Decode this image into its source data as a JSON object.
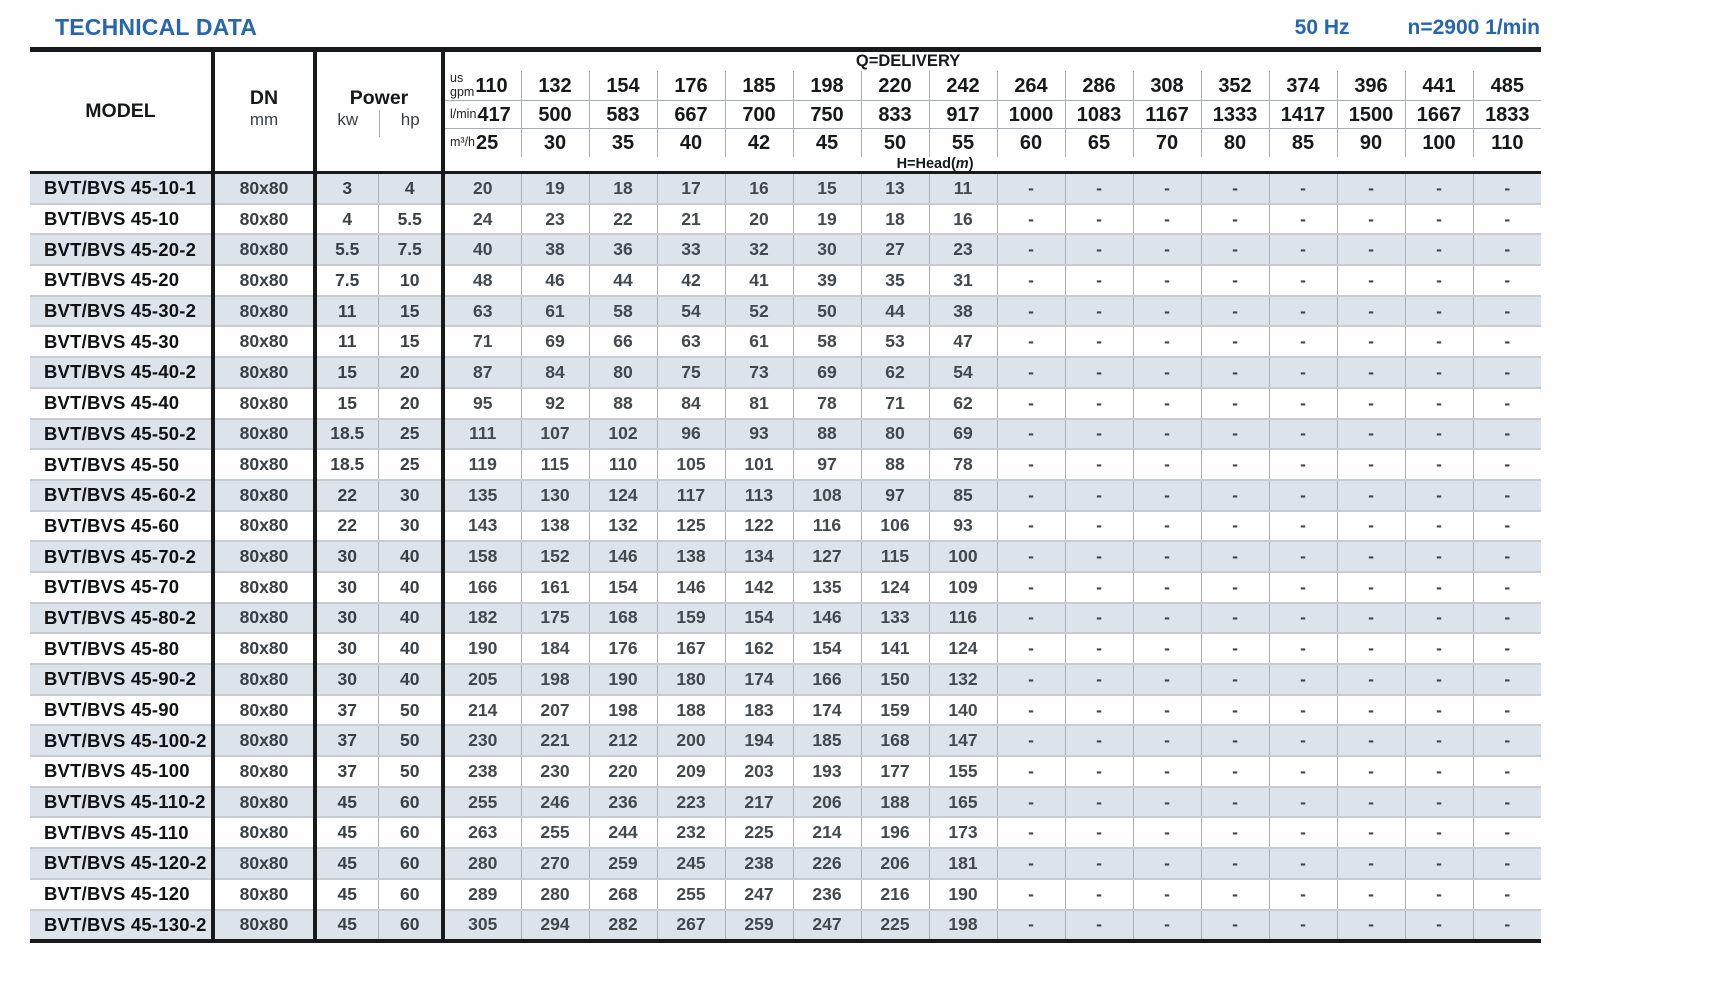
{
  "page": {
    "title": "TECHNICAL DATA",
    "frequency": "50 Hz",
    "speed": "n=2900 1/min",
    "accent_color": "#2766ae",
    "stripe_color": "#dce3ea"
  },
  "table": {
    "model_header": "MODEL",
    "dn_header": "DN",
    "dn_unit": "mm",
    "power_header": "Power",
    "power_units": [
      "kw",
      "hp"
    ],
    "delivery_header": "Q=DELIVERY",
    "head_label": {
      "prefix": "H=Head(",
      "italic": "m",
      "suffix": ")"
    },
    "unit_rows": [
      {
        "key": "us-gpm",
        "label_lines": [
          "us",
          "gpm"
        ],
        "values": [
          "110",
          "132",
          "154",
          "176",
          "185",
          "198",
          "220",
          "242",
          "264",
          "286",
          "308",
          "352",
          "374",
          "396",
          "441",
          "485"
        ]
      },
      {
        "key": "l-min",
        "label_lines": [
          "l/min"
        ],
        "values": [
          "417",
          "500",
          "583",
          "667",
          "700",
          "750",
          "833",
          "917",
          "1000",
          "1083",
          "1167",
          "1333",
          "1417",
          "1500",
          "1667",
          "1833"
        ]
      },
      {
        "key": "m3-h",
        "label_lines": [
          "m³/h"
        ],
        "values": [
          "25",
          "30",
          "35",
          "40",
          "42",
          "45",
          "50",
          "55",
          "60",
          "65",
          "70",
          "80",
          "85",
          "90",
          "100",
          "110"
        ]
      }
    ],
    "rows": [
      {
        "model": "BVT/BVS 45-10-1",
        "dn": "80x80",
        "kw": "3",
        "hp": "4",
        "heads": [
          "20",
          "19",
          "18",
          "17",
          "16",
          "15",
          "13",
          "11",
          "-",
          "-",
          "-",
          "-",
          "-",
          "-",
          "-",
          "-"
        ]
      },
      {
        "model": "BVT/BVS 45-10",
        "dn": "80x80",
        "kw": "4",
        "hp": "5.5",
        "heads": [
          "24",
          "23",
          "22",
          "21",
          "20",
          "19",
          "18",
          "16",
          "-",
          "-",
          "-",
          "-",
          "-",
          "-",
          "-",
          "-"
        ]
      },
      {
        "model": "BVT/BVS 45-20-2",
        "dn": "80x80",
        "kw": "5.5",
        "hp": "7.5",
        "heads": [
          "40",
          "38",
          "36",
          "33",
          "32",
          "30",
          "27",
          "23",
          "-",
          "-",
          "-",
          "-",
          "-",
          "-",
          "-",
          "-"
        ]
      },
      {
        "model": "BVT/BVS 45-20",
        "dn": "80x80",
        "kw": "7.5",
        "hp": "10",
        "heads": [
          "48",
          "46",
          "44",
          "42",
          "41",
          "39",
          "35",
          "31",
          "-",
          "-",
          "-",
          "-",
          "-",
          "-",
          "-",
          "-"
        ]
      },
      {
        "model": "BVT/BVS 45-30-2",
        "dn": "80x80",
        "kw": "11",
        "hp": "15",
        "heads": [
          "63",
          "61",
          "58",
          "54",
          "52",
          "50",
          "44",
          "38",
          "-",
          "-",
          "-",
          "-",
          "-",
          "-",
          "-",
          "-"
        ]
      },
      {
        "model": "BVT/BVS 45-30",
        "dn": "80x80",
        "kw": "11",
        "hp": "15",
        "heads": [
          "71",
          "69",
          "66",
          "63",
          "61",
          "58",
          "53",
          "47",
          "-",
          "-",
          "-",
          "-",
          "-",
          "-",
          "-",
          "-"
        ]
      },
      {
        "model": "BVT/BVS 45-40-2",
        "dn": "80x80",
        "kw": "15",
        "hp": "20",
        "heads": [
          "87",
          "84",
          "80",
          "75",
          "73",
          "69",
          "62",
          "54",
          "-",
          "-",
          "-",
          "-",
          "-",
          "-",
          "-",
          "-"
        ]
      },
      {
        "model": "BVT/BVS 45-40",
        "dn": "80x80",
        "kw": "15",
        "hp": "20",
        "heads": [
          "95",
          "92",
          "88",
          "84",
          "81",
          "78",
          "71",
          "62",
          "-",
          "-",
          "-",
          "-",
          "-",
          "-",
          "-",
          "-"
        ]
      },
      {
        "model": "BVT/BVS 45-50-2",
        "dn": "80x80",
        "kw": "18.5",
        "hp": "25",
        "heads": [
          "111",
          "107",
          "102",
          "96",
          "93",
          "88",
          "80",
          "69",
          "-",
          "-",
          "-",
          "-",
          "-",
          "-",
          "-",
          "-"
        ]
      },
      {
        "model": "BVT/BVS 45-50",
        "dn": "80x80",
        "kw": "18.5",
        "hp": "25",
        "heads": [
          "119",
          "115",
          "110",
          "105",
          "101",
          "97",
          "88",
          "78",
          "-",
          "-",
          "-",
          "-",
          "-",
          "-",
          "-",
          "-"
        ]
      },
      {
        "model": "BVT/BVS 45-60-2",
        "dn": "80x80",
        "kw": "22",
        "hp": "30",
        "heads": [
          "135",
          "130",
          "124",
          "117",
          "113",
          "108",
          "97",
          "85",
          "-",
          "-",
          "-",
          "-",
          "-",
          "-",
          "-",
          "-"
        ]
      },
      {
        "model": "BVT/BVS 45-60",
        "dn": "80x80",
        "kw": "22",
        "hp": "30",
        "heads": [
          "143",
          "138",
          "132",
          "125",
          "122",
          "116",
          "106",
          "93",
          "-",
          "-",
          "-",
          "-",
          "-",
          "-",
          "-",
          "-"
        ]
      },
      {
        "model": "BVT/BVS 45-70-2",
        "dn": "80x80",
        "kw": "30",
        "hp": "40",
        "heads": [
          "158",
          "152",
          "146",
          "138",
          "134",
          "127",
          "115",
          "100",
          "-",
          "-",
          "-",
          "-",
          "-",
          "-",
          "-",
          "-"
        ]
      },
      {
        "model": "BVT/BVS 45-70",
        "dn": "80x80",
        "kw": "30",
        "hp": "40",
        "heads": [
          "166",
          "161",
          "154",
          "146",
          "142",
          "135",
          "124",
          "109",
          "-",
          "-",
          "-",
          "-",
          "-",
          "-",
          "-",
          "-"
        ]
      },
      {
        "model": "BVT/BVS 45-80-2",
        "dn": "80x80",
        "kw": "30",
        "hp": "40",
        "heads": [
          "182",
          "175",
          "168",
          "159",
          "154",
          "146",
          "133",
          "116",
          "-",
          "-",
          "-",
          "-",
          "-",
          "-",
          "-",
          "-"
        ]
      },
      {
        "model": "BVT/BVS 45-80",
        "dn": "80x80",
        "kw": "30",
        "hp": "40",
        "heads": [
          "190",
          "184",
          "176",
          "167",
          "162",
          "154",
          "141",
          "124",
          "-",
          "-",
          "-",
          "-",
          "-",
          "-",
          "-",
          "-"
        ]
      },
      {
        "model": "BVT/BVS 45-90-2",
        "dn": "80x80",
        "kw": "30",
        "hp": "40",
        "heads": [
          "205",
          "198",
          "190",
          "180",
          "174",
          "166",
          "150",
          "132",
          "-",
          "-",
          "-",
          "-",
          "-",
          "-",
          "-",
          "-"
        ]
      },
      {
        "model": "BVT/BVS 45-90",
        "dn": "80x80",
        "kw": "37",
        "hp": "50",
        "heads": [
          "214",
          "207",
          "198",
          "188",
          "183",
          "174",
          "159",
          "140",
          "-",
          "-",
          "-",
          "-",
          "-",
          "-",
          "-",
          "-"
        ]
      },
      {
        "model": "BVT/BVS 45-100-2",
        "dn": "80x80",
        "kw": "37",
        "hp": "50",
        "heads": [
          "230",
          "221",
          "212",
          "200",
          "194",
          "185",
          "168",
          "147",
          "-",
          "-",
          "-",
          "-",
          "-",
          "-",
          "-",
          "-"
        ]
      },
      {
        "model": "BVT/BVS 45-100",
        "dn": "80x80",
        "kw": "37",
        "hp": "50",
        "heads": [
          "238",
          "230",
          "220",
          "209",
          "203",
          "193",
          "177",
          "155",
          "-",
          "-",
          "-",
          "-",
          "-",
          "-",
          "-",
          "-"
        ]
      },
      {
        "model": "BVT/BVS 45-110-2",
        "dn": "80x80",
        "kw": "45",
        "hp": "60",
        "heads": [
          "255",
          "246",
          "236",
          "223",
          "217",
          "206",
          "188",
          "165",
          "-",
          "-",
          "-",
          "-",
          "-",
          "-",
          "-",
          "-"
        ]
      },
      {
        "model": "BVT/BVS 45-110",
        "dn": "80x80",
        "kw": "45",
        "hp": "60",
        "heads": [
          "263",
          "255",
          "244",
          "232",
          "225",
          "214",
          "196",
          "173",
          "-",
          "-",
          "-",
          "-",
          "-",
          "-",
          "-",
          "-"
        ]
      },
      {
        "model": "BVT/BVS 45-120-2",
        "dn": "80x80",
        "kw": "45",
        "hp": "60",
        "heads": [
          "280",
          "270",
          "259",
          "245",
          "238",
          "226",
          "206",
          "181",
          "-",
          "-",
          "-",
          "-",
          "-",
          "-",
          "-",
          "-"
        ]
      },
      {
        "model": "BVT/BVS 45-120",
        "dn": "80x80",
        "kw": "45",
        "hp": "60",
        "heads": [
          "289",
          "280",
          "268",
          "255",
          "247",
          "236",
          "216",
          "190",
          "-",
          "-",
          "-",
          "-",
          "-",
          "-",
          "-",
          "-"
        ]
      },
      {
        "model": "BVT/BVS 45-130-2",
        "dn": "80x80",
        "kw": "45",
        "hp": "60",
        "heads": [
          "305",
          "294",
          "282",
          "267",
          "259",
          "247",
          "225",
          "198",
          "-",
          "-",
          "-",
          "-",
          "-",
          "-",
          "-",
          "-"
        ]
      }
    ]
  }
}
